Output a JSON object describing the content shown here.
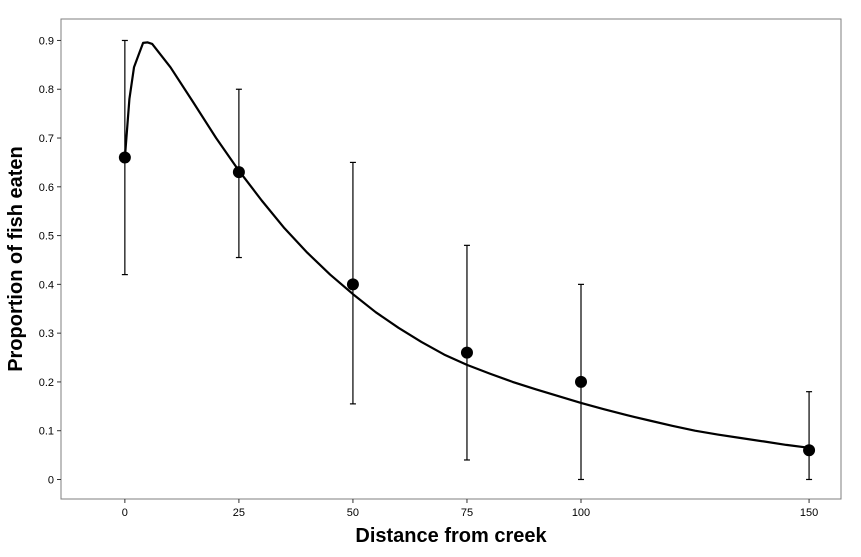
{
  "chart_data": {
    "type": "scatter",
    "xlabel": "Distance from creek",
    "ylabel": "Proportion of fish eaten",
    "xlim": [
      -14,
      157
    ],
    "ylim": [
      -0.04,
      0.944
    ],
    "x_ticks": [
      0,
      25,
      50,
      75,
      100,
      150
    ],
    "y_ticks": [
      0,
      0.1,
      0.2,
      0.3,
      0.4,
      0.5,
      0.6,
      0.7,
      0.8,
      0.9
    ],
    "grid": false,
    "points": [
      {
        "x": 0,
        "y": 0.66,
        "ymin": 0.42,
        "ymax": 0.9
      },
      {
        "x": 25,
        "y": 0.63,
        "ymin": 0.455,
        "ymax": 0.8
      },
      {
        "x": 50,
        "y": 0.4,
        "ymin": 0.155,
        "ymax": 0.65
      },
      {
        "x": 75,
        "y": 0.26,
        "ymin": 0.04,
        "ymax": 0.48
      },
      {
        "x": 100,
        "y": 0.2,
        "ymin": 0.0,
        "ymax": 0.4
      },
      {
        "x": 150,
        "y": 0.06,
        "ymin": 0.0,
        "ymax": 0.18
      }
    ],
    "fitted_curve": [
      [
        0,
        0.66
      ],
      [
        1,
        0.78
      ],
      [
        2,
        0.845
      ],
      [
        3,
        0.87
      ],
      [
        4,
        0.895
      ],
      [
        5,
        0.896
      ],
      [
        6,
        0.893
      ],
      [
        10,
        0.845
      ],
      [
        15,
        0.773
      ],
      [
        20,
        0.7
      ],
      [
        25,
        0.633
      ],
      [
        30,
        0.572
      ],
      [
        35,
        0.515
      ],
      [
        40,
        0.465
      ],
      [
        45,
        0.42
      ],
      [
        50,
        0.38
      ],
      [
        55,
        0.343
      ],
      [
        60,
        0.311
      ],
      [
        65,
        0.282
      ],
      [
        70,
        0.256
      ],
      [
        75,
        0.235
      ],
      [
        80,
        0.217
      ],
      [
        85,
        0.2
      ],
      [
        90,
        0.185
      ],
      [
        95,
        0.171
      ],
      [
        100,
        0.157
      ],
      [
        105,
        0.144
      ],
      [
        110,
        0.132
      ],
      [
        115,
        0.121
      ],
      [
        120,
        0.11
      ],
      [
        125,
        0.1
      ],
      [
        130,
        0.092
      ],
      [
        135,
        0.085
      ],
      [
        140,
        0.078
      ],
      [
        145,
        0.071
      ],
      [
        150,
        0.065
      ]
    ]
  }
}
